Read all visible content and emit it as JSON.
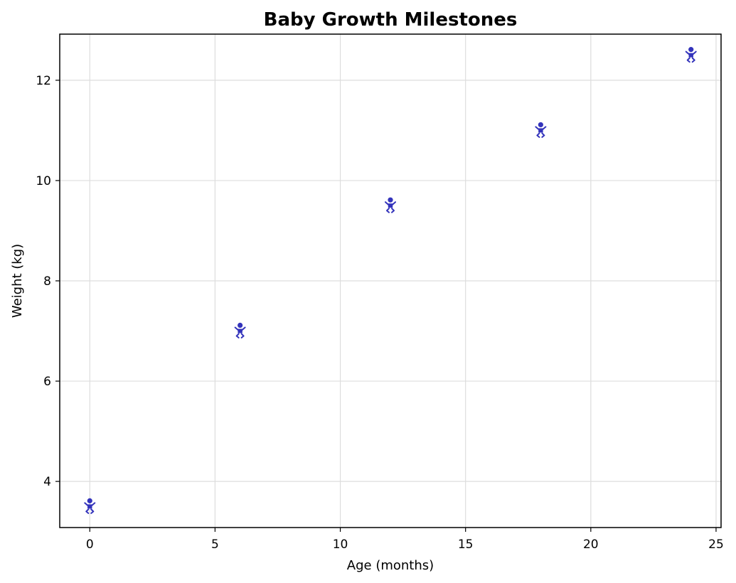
{
  "chart_data": {
    "type": "scatter",
    "title": "Baby Growth Milestones",
    "xlabel": "Age (months)",
    "ylabel": "Weight (kg)",
    "xlim": [
      -1.2,
      25.2
    ],
    "ylim": [
      3.08,
      12.92
    ],
    "xticks": [
      0,
      5,
      10,
      15,
      20,
      25
    ],
    "yticks": [
      4,
      6,
      8,
      10,
      12
    ],
    "grid": true,
    "marker": "baby-icon",
    "marker_color": "#3333bb",
    "series": [
      {
        "x": [
          0,
          6,
          12,
          18,
          24
        ],
        "y": [
          3.5,
          7.0,
          9.5,
          11.0,
          12.5
        ]
      }
    ]
  }
}
